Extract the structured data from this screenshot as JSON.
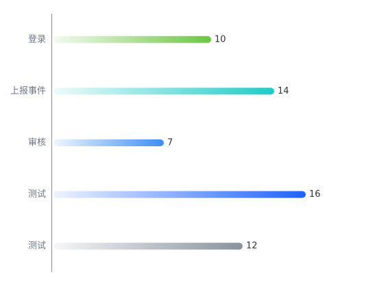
{
  "chart_data": {
    "type": "bar",
    "orientation": "horizontal",
    "categories": [
      "登录",
      "上报事件",
      "审核",
      "测试",
      "测试"
    ],
    "values": [
      10,
      14,
      7,
      16,
      12
    ],
    "colors": [
      "#6cc644",
      "#1ecbc8",
      "#3d8ef5",
      "#1f63ff",
      "#8a929c"
    ],
    "xlim": [
      0,
      20
    ]
  }
}
